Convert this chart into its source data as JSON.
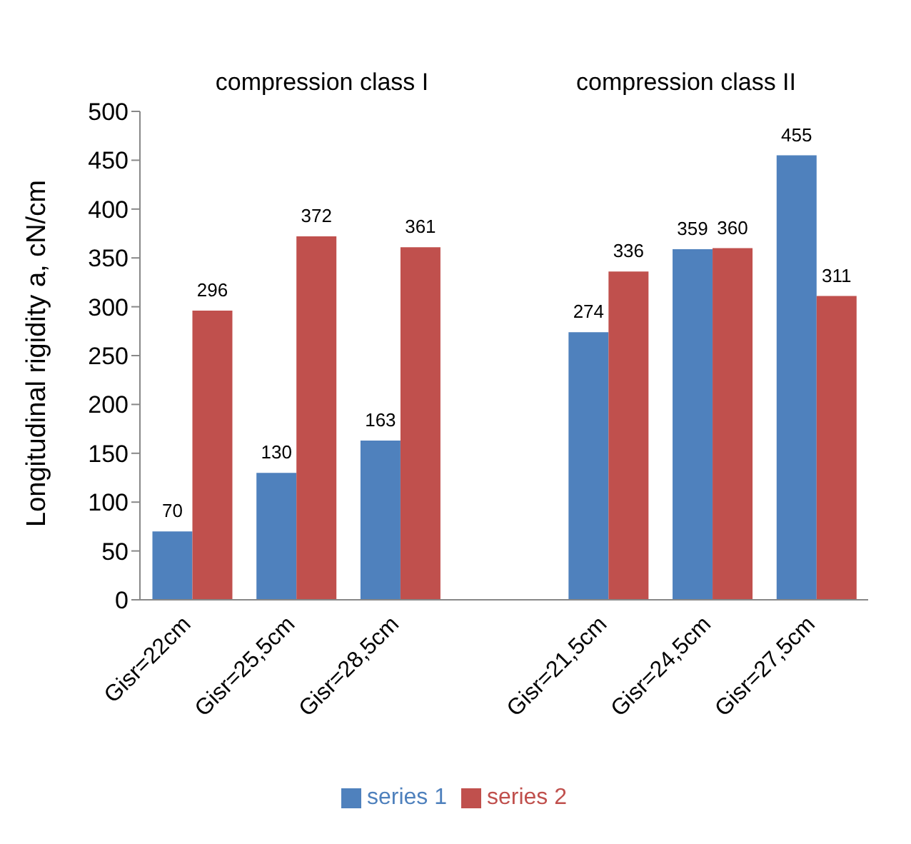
{
  "chart_data": {
    "type": "bar",
    "ylabel": "Longitudinal rigidity a, cN/cm",
    "categories": [
      "Gisr=22cm",
      "Gisr=25,5cm",
      "Gisr=28,5cm",
      null,
      "Gisr=21,5cm",
      "Gisr=24,5cm",
      "Gisr=27,5cm"
    ],
    "series": [
      {
        "name": "series 1",
        "color": "#4f81bd",
        "values": [
          70,
          130,
          163,
          null,
          274,
          359,
          455
        ]
      },
      {
        "name": "series 2",
        "color": "#c0504d",
        "values": [
          296,
          372,
          361,
          null,
          336,
          360,
          311
        ]
      }
    ],
    "ylim": [
      0,
      500
    ],
    "yticks": [
      0,
      50,
      100,
      150,
      200,
      250,
      300,
      350,
      400,
      450,
      500
    ],
    "annotations": [
      "compression class I",
      "compression class II"
    ],
    "data_labels": true,
    "legend": "bottom",
    "grid": false
  }
}
